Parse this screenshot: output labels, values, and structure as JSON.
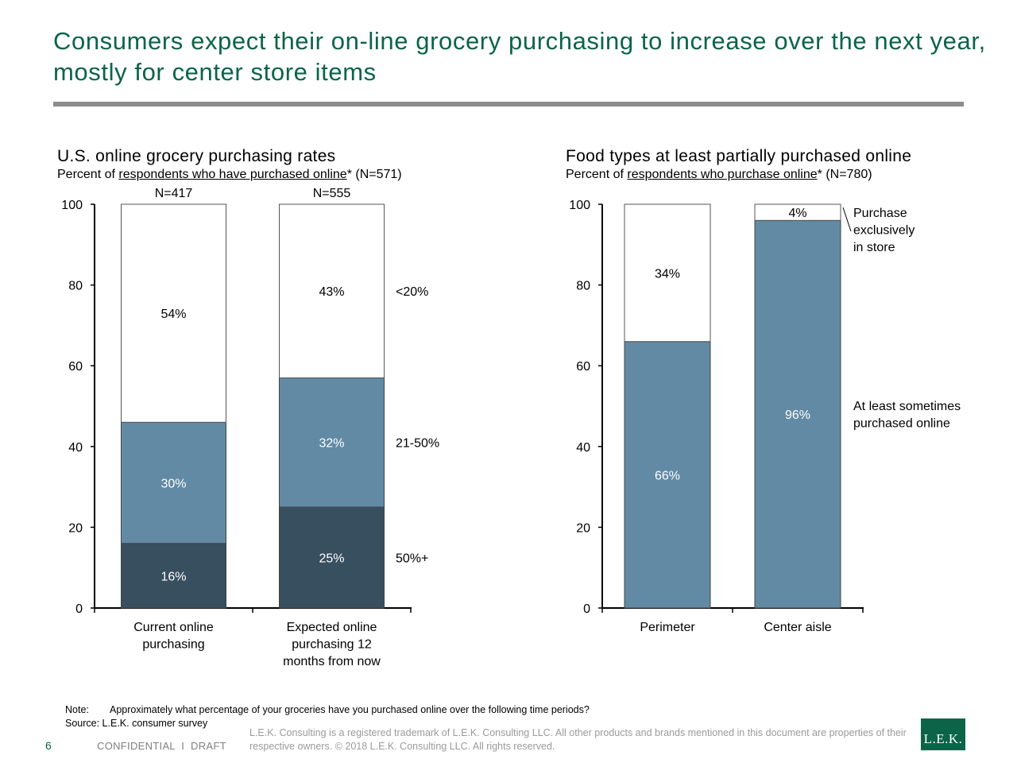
{
  "slide": {
    "title": "Consumers expect their on-line grocery purchasing to increase over the next year, mostly for center store items",
    "page_number": "6",
    "confidential": "CONFIDENTIAL  I  DRAFT",
    "note_label": "Note:",
    "note_text": "Approximately what percentage of your groceries have you purchased online over the following time periods?",
    "source": "Source: L.E.K. consumer survey",
    "legal": "L.E.K. Consulting is a registered trademark of L.E.K. Consulting LLC.  All other products and brands mentioned in this document are properties of their respective owners. © 2018 L.E.K. Consulting LLC.  All rights reserved.",
    "logo_text": "L.E.K."
  },
  "colors": {
    "title_green": "#0b6447",
    "dark": "#374f5f",
    "mid": "#628aa4",
    "white": "#ffffff"
  },
  "chart_data": [
    {
      "type": "bar",
      "stacked": true,
      "title": "U.S. online grocery purchasing rates",
      "subtitle_pre": "Percent of ",
      "subtitle_link": "respondents who have purchased online",
      "subtitle_post": "* (N=571)",
      "ylim": [
        0,
        100
      ],
      "yticks": [
        "0",
        "20",
        "40",
        "60",
        "80",
        "100"
      ],
      "categories": [
        "Current online purchasing",
        "Expected online purchasing 12 months from now"
      ],
      "category_lines": [
        [
          "Current online",
          "purchasing"
        ],
        [
          "Expected online",
          "purchasing 12",
          "months from now"
        ]
      ],
      "n_labels": [
        "N=417",
        "N=555"
      ],
      "series": [
        {
          "name": "50%+",
          "color": "#374f5f",
          "values": [
            16,
            25
          ],
          "labels": [
            "16%",
            "25%"
          ]
        },
        {
          "name": "21-50%",
          "color": "#628aa4",
          "values": [
            30,
            32
          ],
          "labels": [
            "30%",
            "32%"
          ]
        },
        {
          "name": "<20%",
          "color": "#ffffff",
          "values": [
            54,
            43
          ],
          "labels": [
            "54%",
            "43%"
          ]
        }
      ]
    },
    {
      "type": "bar",
      "stacked": true,
      "title": "Food types at least partially purchased online",
      "subtitle_pre": "Percent of ",
      "subtitle_link": "respondents who purchase online",
      "subtitle_post": "* (N=780)",
      "ylim": [
        0,
        100
      ],
      "yticks": [
        "0",
        "20",
        "40",
        "60",
        "80",
        "100"
      ],
      "categories": [
        "Perimeter",
        "Center aisle"
      ],
      "category_lines": [
        [
          "Perimeter"
        ],
        [
          "Center aisle"
        ]
      ],
      "series": [
        {
          "name": "At least sometimes purchased online",
          "name_lines": [
            "At least sometimes",
            "purchased online"
          ],
          "color": "#628aa4",
          "values": [
            66,
            96
          ],
          "labels": [
            "66%",
            "96%"
          ]
        },
        {
          "name": "Purchase exclusively in store",
          "name_lines": [
            "Purchase",
            "exclusively",
            "in store"
          ],
          "color": "#ffffff",
          "values": [
            34,
            4
          ],
          "labels": [
            "34%",
            "4%"
          ]
        }
      ]
    }
  ]
}
